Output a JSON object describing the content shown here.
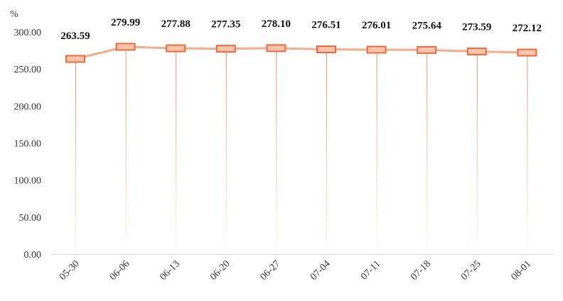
{
  "chart_data": {
    "type": "line",
    "categories": [
      "05-30",
      "06-06",
      "06-13",
      "06-20",
      "06-27",
      "07-04",
      "07-11",
      "07-18",
      "07-25",
      "08-01"
    ],
    "series": [
      {
        "values": [
          263.59,
          279.99,
          277.88,
          277.35,
          278.1,
          276.51,
          276.01,
          275.64,
          273.59,
          272.12
        ],
        "labels": [
          "263.59",
          "279.99",
          "277.88",
          "277.35",
          "278.10",
          "276.51",
          "276.01",
          "275.64",
          "273.59",
          "272.12"
        ]
      }
    ],
    "y_unit": "%",
    "yticks": [
      "0.00",
      "50.00",
      "100.00",
      "150.00",
      "200.00",
      "250.00",
      "300.00"
    ],
    "ylim": [
      0,
      300
    ],
    "grid": false,
    "colors": {
      "line": "#f7ab8a",
      "marker_fill": "#fbc4ac",
      "marker_stroke": "#ee6a3c",
      "drop_line": "#ee8a60",
      "axis": "#d9d9d9"
    }
  }
}
